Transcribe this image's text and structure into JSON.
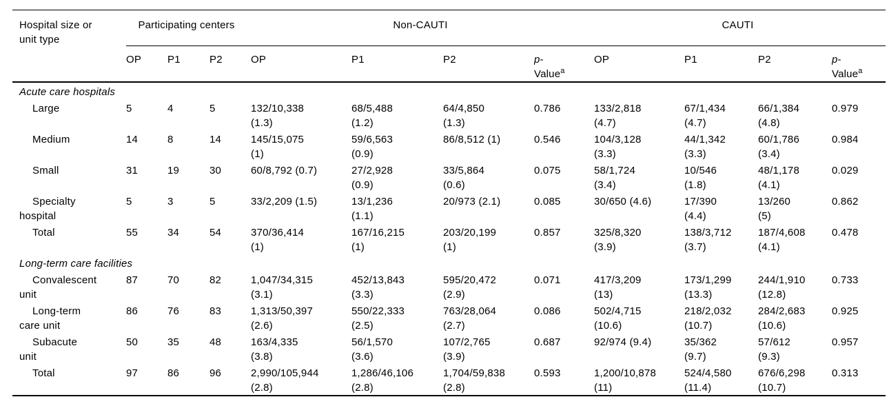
{
  "page": {
    "background": "#ffffff",
    "text_color": "#000000",
    "rule_color": "#000000"
  },
  "table": {
    "corner_header": "Hospital size or\nunit type",
    "spanners": [
      {
        "label": "Participating centers",
        "colspan": 3
      },
      {
        "label": "Non-CAUTI",
        "colspan": 4
      },
      {
        "label": "CAUTI",
        "colspan": 4
      }
    ],
    "columns": [
      "OP",
      "P1",
      "P2",
      "OP",
      "P1",
      "P2",
      "p-Value",
      "OP",
      "P1",
      "P2",
      "p-Value"
    ],
    "p_value_header": {
      "italic": "p",
      "separator": "-",
      "word": "Value",
      "superscript": "a"
    },
    "sections": [
      {
        "title": "Acute care hospitals",
        "rows": [
          {
            "label": "Large",
            "values": [
              "5",
              "4",
              "5",
              "132/10,338\n(1.3)",
              "68/5,488\n(1.2)",
              "64/4,850\n(1.3)",
              "0.786",
              "133/2,818\n(4.7)",
              "67/1,434\n(4.7)",
              "66/1,384\n(4.8)",
              "0.979"
            ]
          },
          {
            "label": "Medium",
            "values": [
              "14",
              "8",
              "14",
              "145/15,075\n(1)",
              "59/6,563\n(0.9)",
              "86/8,512 (1)",
              "0.546",
              "104/3,128\n(3.3)",
              "44/1,342\n(3.3)",
              "60/1,786\n(3.4)",
              "0.984"
            ]
          },
          {
            "label": "Small",
            "values": [
              "31",
              "19",
              "30",
              "60/8,792 (0.7)",
              "27/2,928\n(0.9)",
              "33/5,864\n(0.6)",
              "0.075",
              "58/1,724\n(3.4)",
              "10/546\n(1.8)",
              "48/1,178\n(4.1)",
              "0.029"
            ]
          },
          {
            "label": "Specialty\nhospital",
            "values": [
              "5",
              "3",
              "5",
              "33/2,209 (1.5)",
              "13/1,236\n(1.1)",
              "20/973 (2.1)",
              "0.085",
              "30/650 (4.6)",
              "17/390\n(4.4)",
              "13/260\n(5)",
              "0.862"
            ]
          },
          {
            "label": "Total",
            "values": [
              "55",
              "34",
              "54",
              "370/36,414\n(1)",
              "167/16,215\n(1)",
              "203/20,199\n(1)",
              "0.857",
              "325/8,320\n(3.9)",
              "138/3,712\n(3.7)",
              "187/4,608\n(4.1)",
              "0.478"
            ]
          }
        ]
      },
      {
        "title": "Long-term care facilities",
        "rows": [
          {
            "label": "Convalescent\nunit",
            "values": [
              "87",
              "70",
              "82",
              "1,047/34,315\n(3.1)",
              "452/13,843\n(3.3)",
              "595/20,472\n(2.9)",
              "0.071",
              "417/3,209\n(13)",
              "173/1,299\n(13.3)",
              "244/1,910\n(12.8)",
              "0.733"
            ]
          },
          {
            "label": "Long-term\ncare unit",
            "values": [
              "86",
              "76",
              "83",
              "1,313/50,397\n(2.6)",
              "550/22,333\n(2.5)",
              "763/28,064\n(2.7)",
              "0.086",
              "502/4,715\n(10.6)",
              "218/2,032\n(10.7)",
              "284/2,683\n(10.6)",
              "0.925"
            ]
          },
          {
            "label": "Subacute\nunit",
            "values": [
              "50",
              "35",
              "48",
              "163/4,335\n(3.8)",
              "56/1,570\n(3.6)",
              "107/2,765\n(3.9)",
              "0.687",
              "92/974 (9.4)",
              "35/362\n(9.7)",
              "57/612\n(9.3)",
              "0.957"
            ]
          },
          {
            "label": "Total",
            "values": [
              "97",
              "86",
              "96",
              "2,990/105,944\n(2.8)",
              "1,286/46,106\n(2.8)",
              "1,704/59,838\n(2.8)",
              "0.593",
              "1,200/10,878\n(11)",
              "524/4,580\n(11.4)",
              "676/6,298\n(10.7)",
              "0.313"
            ]
          }
        ]
      }
    ]
  }
}
